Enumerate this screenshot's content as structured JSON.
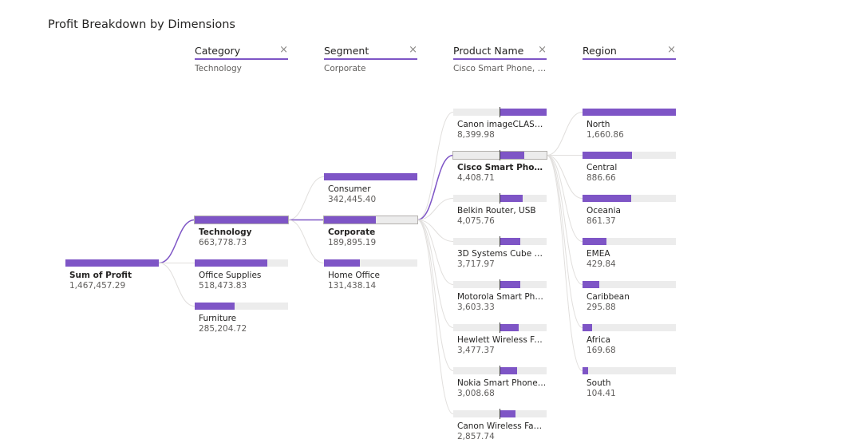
{
  "title": "Profit Breakdown by Dimensions",
  "columns": [
    {
      "label": "Category",
      "subtitle": "Technology"
    },
    {
      "label": "Segment",
      "subtitle": "Corporate"
    },
    {
      "label": "Product Name",
      "subtitle": "Cisco Smart Phone, Ful..."
    },
    {
      "label": "Region",
      "subtitle": ""
    }
  ],
  "close_glyph": "×",
  "colors": {
    "bar": "#7e55c6",
    "track": "#ececec",
    "link": "#e1dfdd",
    "link_active": "#7e55c6"
  },
  "root": {
    "label": "Sum of Profit",
    "value": "1,467,457.29",
    "fraction": 1.0
  },
  "category": [
    {
      "label": "Technology",
      "value": "663,778.73",
      "fraction": 1.0,
      "selected": true
    },
    {
      "label": "Office Supplies",
      "value": "518,473.83",
      "fraction": 0.78
    },
    {
      "label": "Furniture",
      "value": "285,204.72",
      "fraction": 0.43
    }
  ],
  "segment": [
    {
      "label": "Consumer",
      "value": "342,445.40",
      "fraction": 1.0
    },
    {
      "label": "Corporate",
      "value": "189,895.19",
      "fraction": 0.555,
      "selected": true
    },
    {
      "label": "Home Office",
      "value": "131,438.14",
      "fraction": 0.384
    }
  ],
  "product": [
    {
      "label": "Canon imageCLASS 22...",
      "value": "8,399.98",
      "fraction": 1.0
    },
    {
      "label": "Cisco Smart Phone, F...",
      "value": "4,408.71",
      "fraction": 0.52,
      "selected": true
    },
    {
      "label": "Belkin Router, USB",
      "value": "4,075.76",
      "fraction": 0.49
    },
    {
      "label": "3D Systems Cube Print...",
      "value": "3,717.97",
      "fraction": 0.44
    },
    {
      "label": "Motorola Smart Phone...",
      "value": "3,603.33",
      "fraction": 0.43
    },
    {
      "label": "Hewlett Wireless Fax, ...",
      "value": "3,477.37",
      "fraction": 0.41
    },
    {
      "label": "Nokia Smart Phone, C...",
      "value": "3,008.68",
      "fraction": 0.36
    },
    {
      "label": "Canon Wireless Fax, La...",
      "value": "2,857.74",
      "fraction": 0.34
    }
  ],
  "region": [
    {
      "label": "North",
      "value": "1,660.86",
      "fraction": 1.0
    },
    {
      "label": "Central",
      "value": "886.66",
      "fraction": 0.534
    },
    {
      "label": "Oceania",
      "value": "861.37",
      "fraction": 0.519
    },
    {
      "label": "EMEA",
      "value": "429.84",
      "fraction": 0.259
    },
    {
      "label": "Caribbean",
      "value": "295.88",
      "fraction": 0.178
    },
    {
      "label": "Africa",
      "value": "169.68",
      "fraction": 0.102
    },
    {
      "label": "South",
      "value": "104.41",
      "fraction": 0.063
    }
  ]
}
